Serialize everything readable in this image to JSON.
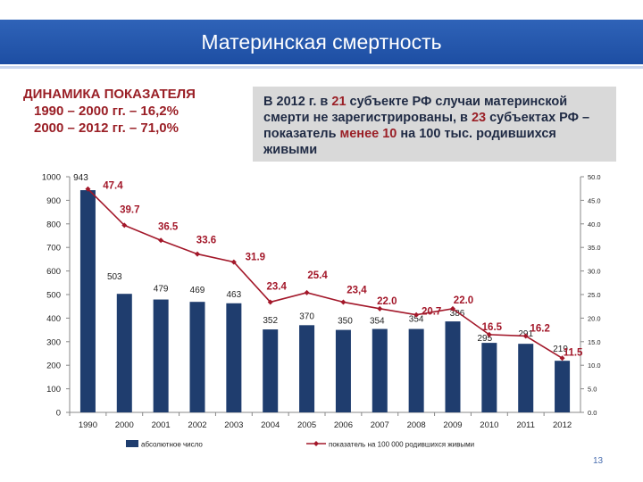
{
  "header": {
    "title": "Материнская смертность"
  },
  "dynamics": {
    "heading": "ДИНАМИКА ПОКАЗАТЕЛЯ",
    "line1": "1990 – 2000 гг. – 16,2%",
    "line2": "2000 – 2012 гг. – 71,0%"
  },
  "infobox": {
    "p1": "В 2012 г. в ",
    "h1": "21",
    "p2": " субъекте РФ случаи материнской смерти не зарегистрированы, в ",
    "h2": "23",
    "p3": " субъектах РФ – показатель ",
    "h3": "менее 10",
    "p4": " на 100 тыс. родившихся живыми"
  },
  "colors": {
    "bar": "#1f3d6e",
    "line": "#a3182a",
    "label": "#a3182a",
    "banner": "#2a5db0"
  },
  "chart_data": {
    "type": "bar",
    "categories": [
      "1990",
      "2000",
      "2001",
      "2002",
      "2003",
      "2004",
      "2005",
      "2006",
      "2007",
      "2008",
      "2009",
      "2010",
      "2011",
      "2012"
    ],
    "series": [
      {
        "name": "абсолютное число",
        "type": "bar",
        "axis": "left",
        "values": [
          943,
          503,
          479,
          469,
          463,
          352,
          370,
          350,
          354,
          354,
          386,
          295,
          291,
          219
        ],
        "labels": [
          "943",
          "503",
          "479",
          "469",
          "463",
          "352",
          "370",
          "350",
          "354",
          "354",
          "386",
          "295",
          "291",
          "219"
        ]
      },
      {
        "name": "показатель на 100 000 родившихся живыми",
        "type": "line",
        "axis": "right",
        "values": [
          47.4,
          39.7,
          36.5,
          33.6,
          31.9,
          23.4,
          25.4,
          23.4,
          22.0,
          20.7,
          22.0,
          16.5,
          16.2,
          11.5
        ],
        "labels": [
          "47.4",
          "39.7",
          "36.5",
          "33.6",
          "31.9",
          "23.4",
          "25.4",
          "23,4",
          "22.0",
          "20.7",
          "22.0",
          "16.5",
          "16.2",
          "11.5"
        ]
      }
    ],
    "y_left": {
      "range": [
        0,
        1000
      ],
      "ticks": [
        "0",
        "100",
        "200",
        "300",
        "400",
        "500",
        "600",
        "700",
        "800",
        "900",
        "1000"
      ]
    },
    "y_right": {
      "range": [
        0,
        50
      ],
      "ticks": [
        "0.0",
        "5.0",
        "10.0",
        "15.0",
        "20.0",
        "25.0",
        "30.0",
        "35.0",
        "40.0",
        "45.0",
        "50.0"
      ]
    },
    "legend_position": "bottom",
    "grid": false
  },
  "page_number": "13"
}
